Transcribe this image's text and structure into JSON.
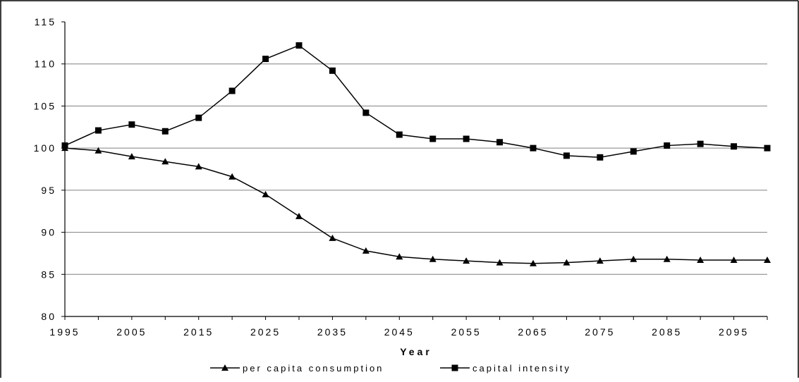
{
  "chart_data": {
    "type": "line",
    "title": "",
    "xlabel": "Year",
    "ylabel": "",
    "x": [
      1995,
      2000,
      2005,
      2010,
      2015,
      2020,
      2025,
      2030,
      2035,
      2040,
      2045,
      2050,
      2055,
      2060,
      2065,
      2070,
      2075,
      2080,
      2085,
      2090,
      2095,
      2100
    ],
    "xticks": [
      "1995",
      "2005",
      "2015",
      "2025",
      "2035",
      "2045",
      "2055",
      "2065",
      "2075",
      "2085",
      "2095"
    ],
    "xlim": [
      1995,
      2100
    ],
    "ylim": [
      80,
      115
    ],
    "yticks": [
      "80",
      "85",
      "90",
      "95",
      "100",
      "105",
      "110",
      "115"
    ],
    "grid": "horizontal",
    "legend_position": "bottom",
    "series": [
      {
        "name": "per capita consumption",
        "marker": "triangle",
        "color": "#000000",
        "values": [
          100.0,
          99.7,
          99.0,
          98.4,
          97.8,
          96.6,
          94.5,
          91.9,
          89.3,
          87.8,
          87.1,
          86.8,
          86.6,
          86.4,
          86.3,
          86.4,
          86.6,
          86.8,
          86.8,
          86.7,
          86.7,
          86.7
        ]
      },
      {
        "name": "capital intensity",
        "marker": "square",
        "color": "#000000",
        "values": [
          100.3,
          102.1,
          102.8,
          102.0,
          103.6,
          106.8,
          110.6,
          112.2,
          109.2,
          104.2,
          101.6,
          101.1,
          101.1,
          100.7,
          100.0,
          99.1,
          98.9,
          99.6,
          100.3,
          100.5,
          100.2,
          100.0
        ]
      }
    ]
  }
}
